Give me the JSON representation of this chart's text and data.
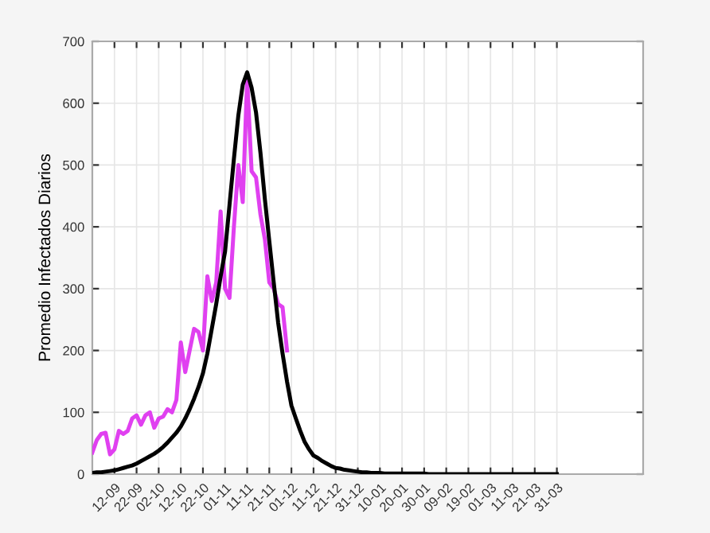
{
  "chart_data": {
    "type": "line",
    "ylabel": "Promedio Infectados Diarios",
    "categories": [
      null,
      null,
      null,
      null,
      null,
      "12-09",
      null,
      null,
      null,
      null,
      "22-09",
      null,
      null,
      null,
      null,
      "02-10",
      null,
      null,
      null,
      null,
      "12-10",
      null,
      null,
      null,
      null,
      "22-10",
      null,
      null,
      null,
      null,
      "01-11",
      null,
      null,
      null,
      null,
      "11-11",
      null,
      null,
      null,
      null,
      "21-11",
      null,
      null,
      null,
      null,
      "01-12",
      null,
      null,
      null,
      null,
      "11-12",
      null,
      null,
      null,
      null,
      "21-12",
      null,
      null,
      null,
      null,
      "31-12",
      null,
      null,
      null,
      null,
      "10-01",
      null,
      null,
      null,
      null,
      "20-01",
      null,
      null,
      null,
      null,
      "30-01",
      null,
      null,
      null,
      null,
      "09-02",
      null,
      null,
      null,
      null,
      "19-02",
      null,
      null,
      null,
      null,
      "01-03",
      null,
      null,
      null,
      null,
      "11-03",
      null,
      null,
      null,
      null,
      "21-03",
      null,
      null,
      null,
      null,
      "31-03",
      null,
      null,
      null,
      null,
      null,
      null,
      null,
      null,
      null,
      null,
      null,
      null,
      null,
      null,
      null,
      null,
      null,
      null,
      null
    ],
    "ylim": [
      0,
      700
    ],
    "yticks": [
      0,
      100,
      200,
      300,
      400,
      500,
      600,
      700
    ],
    "grid": true,
    "line_style": "solid",
    "marker": "none",
    "series": [
      {
        "color": "#e040f0",
        "values": [
          35,
          55,
          65,
          67,
          32,
          40,
          70,
          65,
          70,
          90,
          95,
          80,
          95,
          100,
          75,
          90,
          93,
          105,
          100,
          120,
          213,
          165,
          200,
          235,
          230,
          200,
          320,
          280,
          310,
          425,
          300,
          285,
          400,
          500,
          440,
          640,
          490,
          480,
          420,
          380,
          310,
          300,
          275,
          270,
          200,
          null,
          null,
          null,
          null,
          null,
          null,
          null,
          null,
          null,
          null,
          null,
          null,
          null,
          null,
          null,
          null,
          null,
          null,
          null,
          null,
          null,
          null,
          null,
          null,
          null,
          null,
          null,
          null,
          null,
          null,
          null,
          null,
          null,
          null,
          null,
          null,
          null,
          null,
          null,
          null,
          null,
          null,
          null,
          null,
          null,
          null,
          null,
          null,
          null,
          null,
          null,
          null,
          null,
          null,
          null,
          null,
          null,
          null,
          null,
          null,
          null,
          null,
          null,
          null,
          null,
          null,
          null,
          null,
          null,
          null,
          null,
          null,
          null,
          null,
          null,
          null,
          null,
          null,
          null,
          null
        ]
      },
      {
        "color": "#000000",
        "values": [
          2,
          3,
          3,
          4,
          5,
          6,
          8,
          10,
          12,
          14,
          17,
          21,
          25,
          29,
          33,
          38,
          44,
          51,
          59,
          67,
          77,
          90,
          105,
          122,
          141,
          163,
          195,
          235,
          275,
          320,
          360,
          435,
          510,
          580,
          630,
          650,
          625,
          585,
          520,
          445,
          377,
          310,
          245,
          195,
          150,
          111,
          90,
          70,
          52,
          40,
          30,
          26,
          21,
          17,
          13,
          10,
          9,
          7,
          6,
          5,
          4,
          3,
          3,
          2,
          2,
          2,
          1,
          1,
          1,
          1,
          1,
          1,
          1,
          1,
          1,
          1,
          0,
          0,
          0,
          0,
          0,
          0,
          0,
          0,
          0,
          0,
          0,
          0,
          0,
          0,
          0,
          0,
          0,
          0,
          0,
          0,
          0,
          0,
          0,
          0,
          0,
          0,
          0,
          0,
          0,
          0,
          null,
          null,
          null,
          null,
          null,
          null,
          null,
          null,
          null,
          null,
          null,
          null,
          null,
          null,
          null,
          null,
          null,
          null,
          null
        ]
      }
    ]
  }
}
